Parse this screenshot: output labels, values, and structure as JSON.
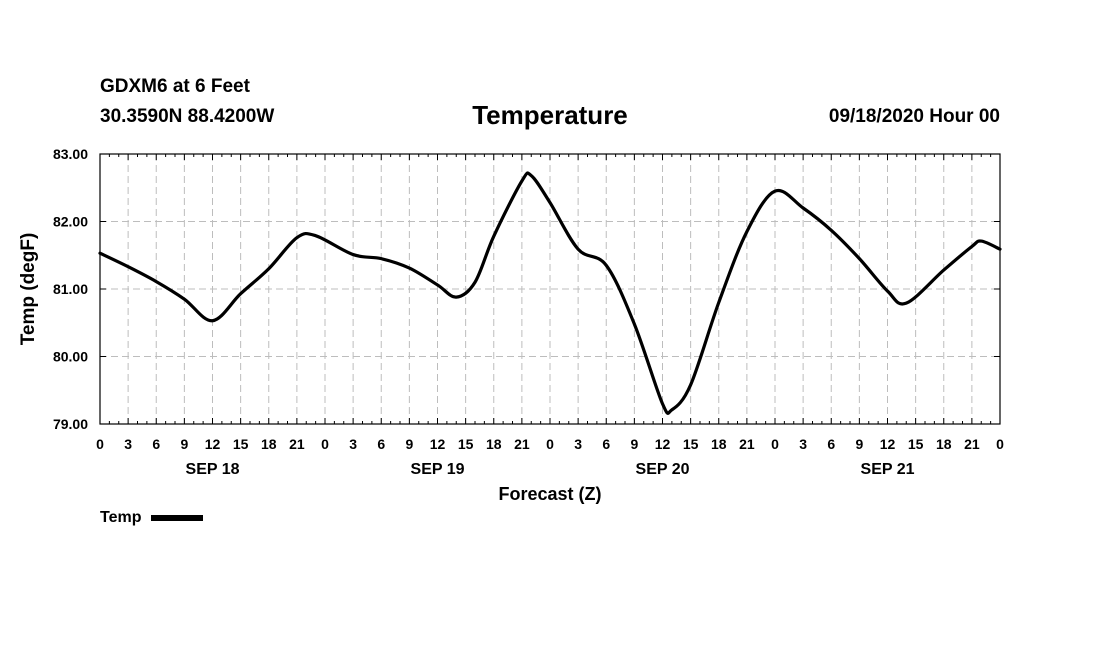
{
  "header": {
    "station": "GDXM6 at 6 Feet",
    "coords": "30.3590N 88.4200W",
    "runtime": "09/18/2020 Hour 00"
  },
  "chart_data": {
    "type": "line",
    "title": "Temperature",
    "xlabel": "Forecast (Z)",
    "ylabel": "Temp (degF)",
    "ylim": [
      79.0,
      83.0
    ],
    "yticks": [
      "79.00",
      "80.00",
      "81.00",
      "82.00",
      "83.00"
    ],
    "xlim": [
      "2020-09-18T00:00Z",
      "2020-09-22T00:00Z"
    ],
    "hour_ticks": [
      "0",
      "3",
      "6",
      "9",
      "12",
      "15",
      "18",
      "21",
      "0",
      "3",
      "6",
      "9",
      "12",
      "15",
      "18",
      "21",
      "0",
      "3",
      "6",
      "9",
      "12",
      "15",
      "18",
      "21",
      "0",
      "3",
      "6",
      "9",
      "12",
      "15",
      "18",
      "21",
      "0"
    ],
    "date_labels": [
      "SEP 18",
      "SEP 19",
      "SEP 20",
      "SEP 21"
    ],
    "grid": true,
    "legend": "bottom-left",
    "series": [
      {
        "name": "Temp",
        "color": "#000000",
        "points": [
          [
            "2020-09-18T00:00Z",
            81.53
          ],
          [
            "2020-09-18T03:00Z",
            81.33
          ],
          [
            "2020-09-18T06:00Z",
            81.11
          ],
          [
            "2020-09-18T09:00Z",
            80.85
          ],
          [
            "2020-09-18T12:00Z",
            80.53
          ],
          [
            "2020-09-18T15:00Z",
            80.93
          ],
          [
            "2020-09-18T18:00Z",
            81.3
          ],
          [
            "2020-09-18T21:00Z",
            81.76
          ],
          [
            "2020-09-18T23:00Z",
            81.79
          ],
          [
            "2020-09-19T03:00Z",
            81.51
          ],
          [
            "2020-09-19T06:00Z",
            81.45
          ],
          [
            "2020-09-19T09:00Z",
            81.31
          ],
          [
            "2020-09-19T12:00Z",
            81.06
          ],
          [
            "2020-09-19T14:00Z",
            80.88
          ],
          [
            "2020-09-19T16:00Z",
            81.1
          ],
          [
            "2020-09-19T18:00Z",
            81.78
          ],
          [
            "2020-09-19T21:00Z",
            82.6
          ],
          [
            "2020-09-19T22:00Z",
            82.68
          ],
          [
            "2020-09-20T00:00Z",
            82.28
          ],
          [
            "2020-09-20T03:00Z",
            81.59
          ],
          [
            "2020-09-20T06:00Z",
            81.35
          ],
          [
            "2020-09-20T09:00Z",
            80.48
          ],
          [
            "2020-09-20T12:00Z",
            79.3
          ],
          [
            "2020-09-20T13:00Z",
            79.21
          ],
          [
            "2020-09-20T15:00Z",
            79.58
          ],
          [
            "2020-09-20T18:00Z",
            80.8
          ],
          [
            "2020-09-20T21:00Z",
            81.85
          ],
          [
            "2020-09-21T00:00Z",
            82.45
          ],
          [
            "2020-09-21T03:00Z",
            82.2
          ],
          [
            "2020-09-21T06:00Z",
            81.87
          ],
          [
            "2020-09-21T09:00Z",
            81.45
          ],
          [
            "2020-09-21T12:00Z",
            80.97
          ],
          [
            "2020-09-21T14:00Z",
            80.79
          ],
          [
            "2020-09-21T18:00Z",
            81.28
          ],
          [
            "2020-09-21T21:00Z",
            81.63
          ],
          [
            "2020-09-21T22:00Z",
            81.71
          ],
          [
            "2020-09-22T00:00Z",
            81.59
          ]
        ]
      }
    ]
  }
}
